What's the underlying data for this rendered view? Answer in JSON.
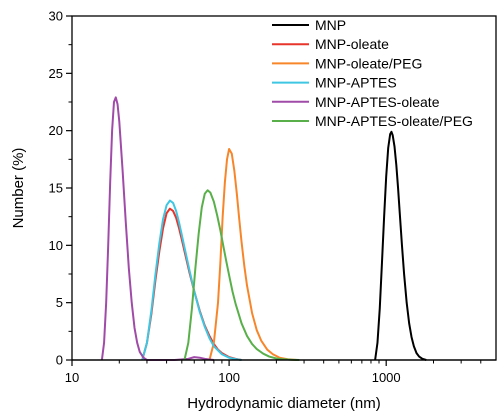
{
  "chart_data": {
    "type": "line",
    "xlabel": "Hydrodynamic diameter (nm)",
    "ylabel": "Number (%)",
    "xscale": "log",
    "xlim": [
      10,
      5000
    ],
    "ylim": [
      0,
      30
    ],
    "x_ticks": [
      10,
      100,
      1000
    ],
    "x_tick_labels": [
      "10",
      "100",
      "1000"
    ],
    "y_ticks": [
      0,
      5,
      10,
      15,
      20,
      25,
      30
    ],
    "y_tick_labels": [
      "0",
      "5",
      "10",
      "15",
      "20",
      "25",
      "30"
    ],
    "grid": false,
    "legend_position": "top-right",
    "series": [
      {
        "name": "MNP",
        "color": "#000000",
        "x": [
          850,
          880,
          910,
          940,
          970,
          1000,
          1030,
          1060,
          1080,
          1100,
          1130,
          1160,
          1190,
          1220,
          1260,
          1300,
          1350,
          1400,
          1450,
          1500,
          1560,
          1620,
          1700,
          1800
        ],
        "y": [
          0,
          1.5,
          4.5,
          8.5,
          12.5,
          16.0,
          18.5,
          19.7,
          19.9,
          19.6,
          18.6,
          17.0,
          15.0,
          12.8,
          10.0,
          7.5,
          5.0,
          3.2,
          2.0,
          1.2,
          0.6,
          0.3,
          0.1,
          0
        ]
      },
      {
        "name": "MNP-oleate",
        "color": "#e8352b",
        "x": [
          28,
          30,
          32,
          34,
          36,
          38,
          40,
          42,
          44,
          46,
          48,
          50,
          53,
          56,
          60,
          65,
          70,
          75,
          80,
          85,
          90,
          100,
          110,
          120
        ],
        "y": [
          0,
          1.5,
          4.0,
          7.0,
          9.5,
          11.5,
          12.8,
          13.2,
          13.0,
          12.4,
          11.5,
          10.5,
          9.0,
          7.6,
          6.0,
          4.3,
          3.0,
          2.1,
          1.4,
          0.9,
          0.6,
          0.25,
          0.1,
          0
        ]
      },
      {
        "name": "MNP-oleate/PEG",
        "color": "#f7862a",
        "x": [
          75,
          80,
          85,
          88,
          91,
          94,
          97,
          100,
          104,
          108,
          112,
          116,
          120,
          125,
          130,
          140,
          150,
          160,
          175,
          190,
          210,
          240,
          270
        ],
        "y": [
          0,
          1.5,
          5.0,
          8.5,
          12.5,
          15.5,
          17.5,
          18.4,
          18.0,
          16.5,
          14.5,
          12.3,
          10.3,
          8.2,
          6.5,
          4.1,
          2.6,
          1.7,
          0.9,
          0.5,
          0.2,
          0.05,
          0
        ]
      },
      {
        "name": "MNP-APTES",
        "color": "#3ec6e2",
        "x": [
          28,
          30,
          32,
          34,
          36,
          38,
          40,
          42,
          44,
          46,
          48,
          50,
          53,
          56,
          60,
          65,
          70,
          75,
          80,
          90,
          100,
          110,
          120
        ],
        "y": [
          0,
          1.5,
          4.3,
          7.5,
          10.2,
          12.3,
          13.5,
          13.9,
          13.7,
          13.0,
          12.0,
          10.9,
          9.3,
          7.8,
          6.0,
          4.2,
          2.9,
          1.9,
          1.2,
          0.5,
          0.2,
          0.08,
          0
        ]
      },
      {
        "name": "MNP-APTES-oleate",
        "color": "#a04ba8",
        "x": [
          15.5,
          16.0,
          16.5,
          17.0,
          17.5,
          18.0,
          18.5,
          19.0,
          19.5,
          20.0,
          21.0,
          22.0,
          23.0,
          24.0,
          25.0,
          26.0,
          27.0,
          28.5,
          30.0,
          35.0,
          45.0,
          55.0,
          60.0,
          65.0,
          70.0,
          80.0
        ],
        "y": [
          0,
          1.5,
          5.0,
          10.0,
          15.5,
          20.0,
          22.5,
          22.9,
          22.3,
          20.8,
          16.5,
          12.0,
          8.0,
          5.0,
          2.8,
          1.5,
          0.7,
          0.2,
          0,
          0,
          0,
          0.1,
          0.25,
          0.2,
          0.1,
          0
        ]
      },
      {
        "name": "MNP-APTES-oleate/PEG",
        "color": "#59b04a",
        "x": [
          52,
          55,
          58,
          61,
          64,
          67,
          70,
          73,
          76,
          80,
          84,
          88,
          92,
          96,
          100,
          105,
          110,
          120,
          130,
          140,
          150,
          165,
          180,
          200,
          220,
          250,
          280
        ],
        "y": [
          0,
          1.5,
          4.5,
          8.0,
          11.0,
          13.3,
          14.5,
          14.8,
          14.6,
          13.8,
          12.6,
          11.3,
          9.9,
          8.6,
          7.4,
          6.0,
          4.9,
          3.2,
          2.1,
          1.4,
          0.95,
          0.55,
          0.3,
          0.13,
          0.06,
          0.02,
          0
        ]
      }
    ]
  }
}
